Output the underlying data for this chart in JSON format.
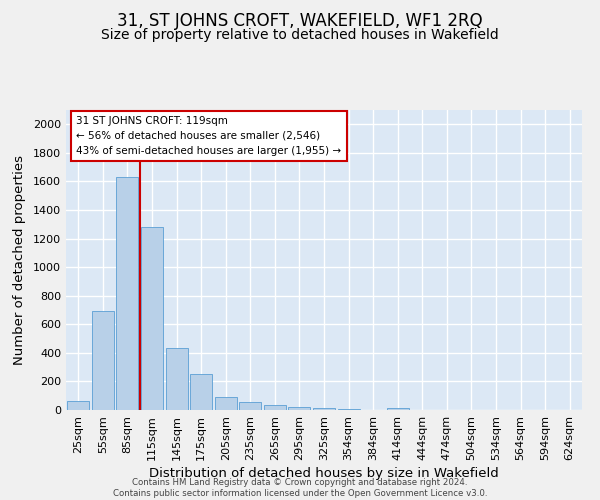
{
  "title": "31, ST JOHNS CROFT, WAKEFIELD, WF1 2RQ",
  "subtitle": "Size of property relative to detached houses in Wakefield",
  "xlabel": "Distribution of detached houses by size in Wakefield",
  "ylabel": "Number of detached properties",
  "footer_line1": "Contains HM Land Registry data © Crown copyright and database right 2024.",
  "footer_line2": "Contains public sector information licensed under the Open Government Licence v3.0.",
  "categories": [
    "25sqm",
    "55sqm",
    "85sqm",
    "115sqm",
    "145sqm",
    "175sqm",
    "205sqm",
    "235sqm",
    "265sqm",
    "295sqm",
    "325sqm",
    "354sqm",
    "384sqm",
    "414sqm",
    "444sqm",
    "474sqm",
    "504sqm",
    "534sqm",
    "564sqm",
    "594sqm",
    "624sqm"
  ],
  "values": [
    65,
    690,
    1630,
    1280,
    435,
    252,
    90,
    55,
    35,
    22,
    15,
    10,
    0,
    15,
    0,
    0,
    0,
    0,
    0,
    0,
    0
  ],
  "bar_color": "#b8d0e8",
  "bar_edge_color": "#5a9fd4",
  "red_line_color": "#cc0000",
  "annotation_text": "31 ST JOHNS CROFT: 119sqm\n← 56% of detached houses are smaller (2,546)\n43% of semi-detached houses are larger (1,955) →",
  "annotation_box_color": "#ffffff",
  "annotation_box_edge": "#cc0000",
  "ylim": [
    0,
    2100
  ],
  "yticks": [
    0,
    200,
    400,
    600,
    800,
    1000,
    1200,
    1400,
    1600,
    1800,
    2000
  ],
  "background_color": "#dce8f5",
  "grid_color": "#ffffff",
  "fig_background": "#f0f0f0",
  "title_fontsize": 12,
  "subtitle_fontsize": 10,
  "axis_label_fontsize": 9.5,
  "tick_fontsize": 8
}
